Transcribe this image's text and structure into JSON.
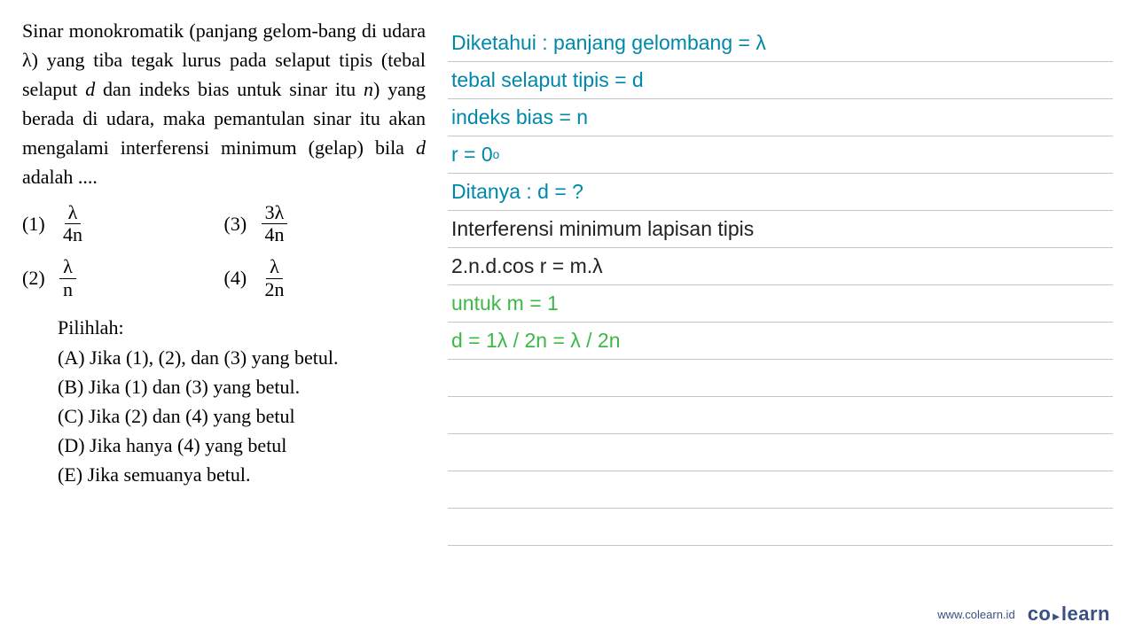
{
  "question": {
    "text_parts": [
      "Sinar monokromatik (panjang gelom-bang di udara λ) yang tiba tegak lurus pada selaput tipis (tebal selaput ",
      "d",
      " dan indeks bias untuk sinar itu ",
      "n",
      ") yang berada di udara, maka pemantulan sinar itu akan mengalami interferensi minimum (gelap) bila ",
      "d",
      " adalah ...."
    ]
  },
  "options": [
    {
      "num": "(1)",
      "frac_num": "λ",
      "frac_den": "4n"
    },
    {
      "num": "(3)",
      "frac_num": "3λ",
      "frac_den": "4n"
    },
    {
      "num": "(2)",
      "frac_num": "λ",
      "frac_den": "n"
    },
    {
      "num": "(4)",
      "frac_num": "λ",
      "frac_den": "2n"
    }
  ],
  "choices_header": "Pilihlah:",
  "choices": [
    "(A) Jika (1), (2), dan (3) yang betul.",
    "(B) Jika (1) dan (3) yang betul.",
    "(C) Jika (2) dan (4) yang betul",
    "(D) Jika hanya (4) yang betul",
    "(E) Jika semuanya betul."
  ],
  "solution_lines": [
    {
      "text": "Diketahui : panjang gelombang  = λ",
      "color": "teal"
    },
    {
      "text": "tebal selaput tipis = d",
      "color": "teal"
    },
    {
      "text": "indeks bias = n",
      "color": "teal"
    },
    {
      "text": "r = 0",
      "sup": "o",
      "color": "teal"
    },
    {
      "text": "Ditanya : d = ?",
      "color": "teal"
    },
    {
      "text": "Interferensi minimum lapisan tipis",
      "color": "black-line"
    },
    {
      "text": "2.n.d.cos r = m.λ",
      "color": "black-line"
    },
    {
      "text": "untuk m = 1",
      "color": "green"
    },
    {
      "text": "d = 1λ / 2n = λ / 2n",
      "color": "green"
    },
    {
      "text": "",
      "color": "teal"
    },
    {
      "text": "",
      "color": "teal"
    },
    {
      "text": "",
      "color": "teal"
    },
    {
      "text": "",
      "color": "teal"
    },
    {
      "text": "",
      "color": "teal"
    }
  ],
  "footer": {
    "url": "www.colearn.id",
    "logo_co": "co",
    "logo_learn": "learn"
  },
  "colors": {
    "teal": "#0088aa",
    "black": "#222222",
    "green": "#3db847",
    "line": "#c5c5c5",
    "footer": "#3a5080"
  }
}
